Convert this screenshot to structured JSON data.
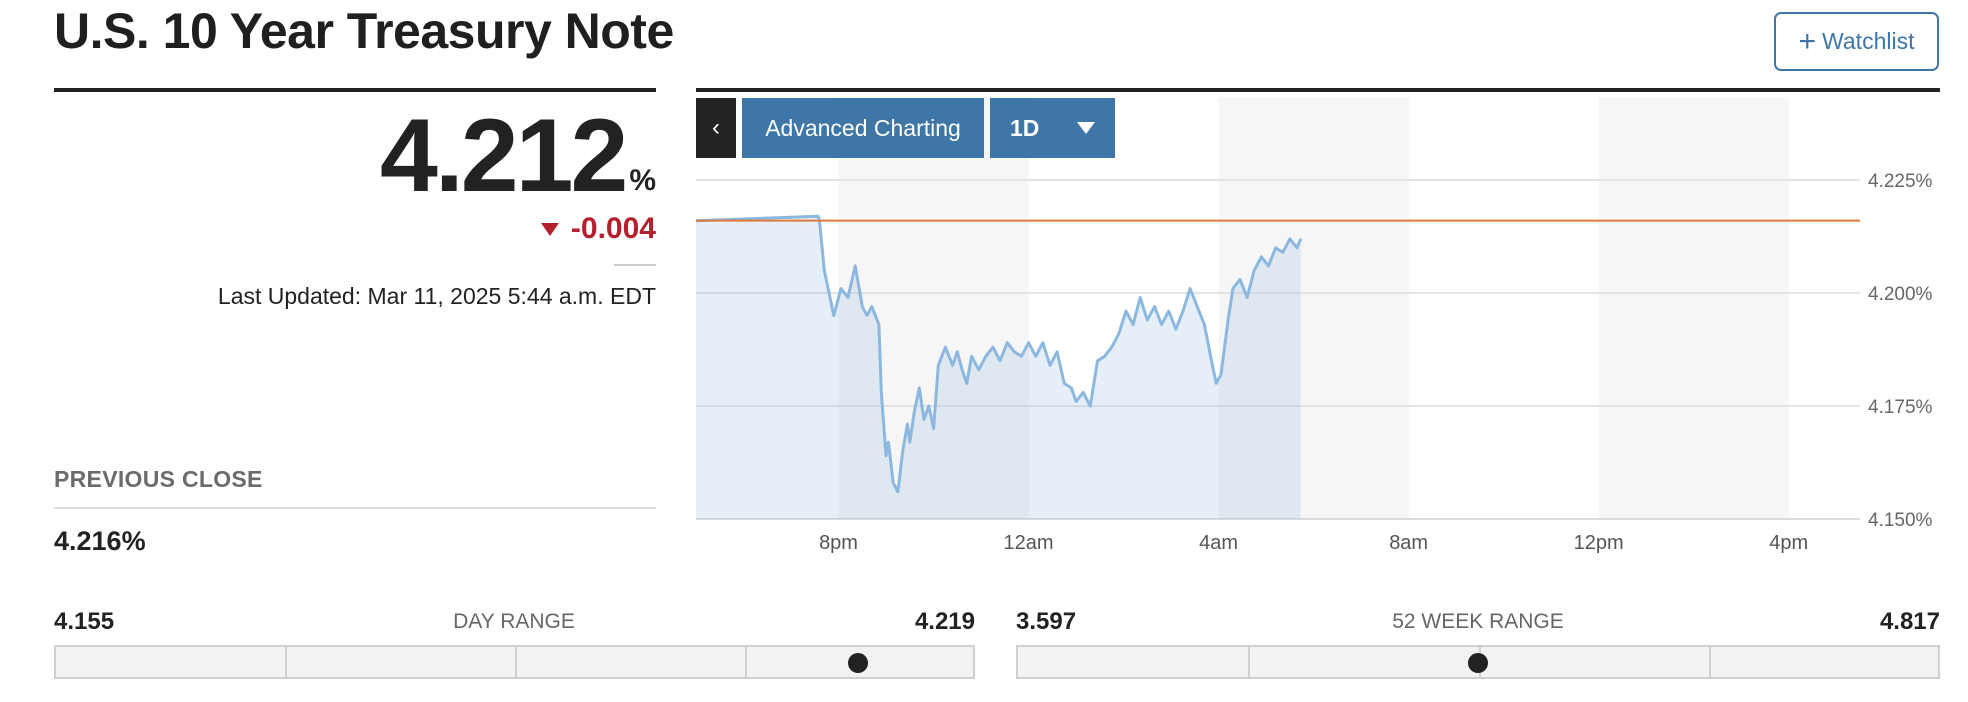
{
  "header": {
    "title": "U.S. 10 Year Treasury Note",
    "watchlist_label": "Watchlist",
    "watchlist_icon": "plus-icon"
  },
  "quote": {
    "price": "4.212",
    "unit": "%",
    "change": "-0.004",
    "change_direction": "down",
    "change_color": "#b5202e",
    "last_updated": "Last Updated: Mar 11, 2025 5:44 a.m. EDT"
  },
  "previous_close": {
    "label": "PREVIOUS CLOSE",
    "value": "4.216%"
  },
  "chart_toolbar": {
    "back_icon": "chevron-left-icon",
    "advanced_label": "Advanced Charting",
    "period_label": "1D",
    "period_icon": "caret-down-icon"
  },
  "day_range": {
    "label": "DAY RANGE",
    "low": "4.155",
    "high": "4.219",
    "position": 0.875
  },
  "week52_range": {
    "label": "52 WEEK RANGE",
    "low": "3.597",
    "high": "4.817",
    "position": 0.5
  },
  "colors": {
    "accent": "#3f76a8",
    "line": "#8cb8e0",
    "previous_close_line": "#e07a3a",
    "negative": "#b5202e"
  },
  "chart_data": {
    "type": "area",
    "x_ticks": [
      "8pm",
      "12am",
      "4am",
      "8am",
      "12pm",
      "4pm"
    ],
    "y_ticks": [
      "4.225%",
      "4.200%",
      "4.175%",
      "4.150%"
    ],
    "ylim": [
      4.15,
      4.225
    ],
    "grid": true,
    "reference_line": 4.216,
    "series": [
      {
        "x": [
          17.0,
          19.57,
          19.6,
          19.7,
          19.9,
          20.05,
          20.2,
          20.35,
          20.5,
          20.6,
          20.7,
          20.85,
          20.9,
          21.0,
          21.05,
          21.15,
          21.25,
          21.35,
          21.45,
          21.5,
          21.6,
          21.7,
          21.8,
          21.9,
          22.0,
          22.1,
          22.25,
          22.4,
          22.5,
          22.6,
          22.7,
          22.8,
          22.95,
          23.1,
          23.25,
          23.4,
          23.55,
          23.7,
          23.85,
          24.0,
          24.15,
          24.3,
          24.45,
          24.6,
          24.75,
          24.9,
          25.0,
          25.15,
          25.3,
          25.45,
          25.6,
          25.75,
          25.9,
          26.05,
          26.2,
          26.35,
          26.5,
          26.65,
          26.8,
          26.95,
          27.1,
          27.25,
          27.4,
          27.55,
          27.7,
          27.85,
          27.95,
          28.05,
          28.1,
          28.2,
          28.3,
          28.45,
          28.6,
          28.75,
          28.9,
          29.05,
          29.2,
          29.35,
          29.5,
          29.65,
          29.73
        ],
        "y": [
          4.216,
          4.217,
          4.216,
          4.205,
          4.195,
          4.201,
          4.199,
          4.206,
          4.197,
          4.195,
          4.197,
          4.193,
          4.178,
          4.164,
          4.167,
          4.158,
          4.156,
          4.165,
          4.171,
          4.167,
          4.174,
          4.179,
          4.172,
          4.175,
          4.17,
          4.184,
          4.188,
          4.184,
          4.187,
          4.183,
          4.18,
          4.186,
          4.183,
          4.186,
          4.188,
          4.185,
          4.189,
          4.187,
          4.186,
          4.189,
          4.186,
          4.189,
          4.184,
          4.187,
          4.18,
          4.179,
          4.176,
          4.178,
          4.175,
          4.185,
          4.186,
          4.188,
          4.191,
          4.196,
          4.193,
          4.199,
          4.194,
          4.197,
          4.193,
          4.196,
          4.192,
          4.196,
          4.201,
          4.197,
          4.193,
          4.185,
          4.18,
          4.182,
          4.186,
          4.194,
          4.201,
          4.203,
          4.199,
          4.205,
          4.208,
          4.206,
          4.21,
          4.209,
          4.212,
          4.21,
          4.212
        ]
      }
    ]
  }
}
